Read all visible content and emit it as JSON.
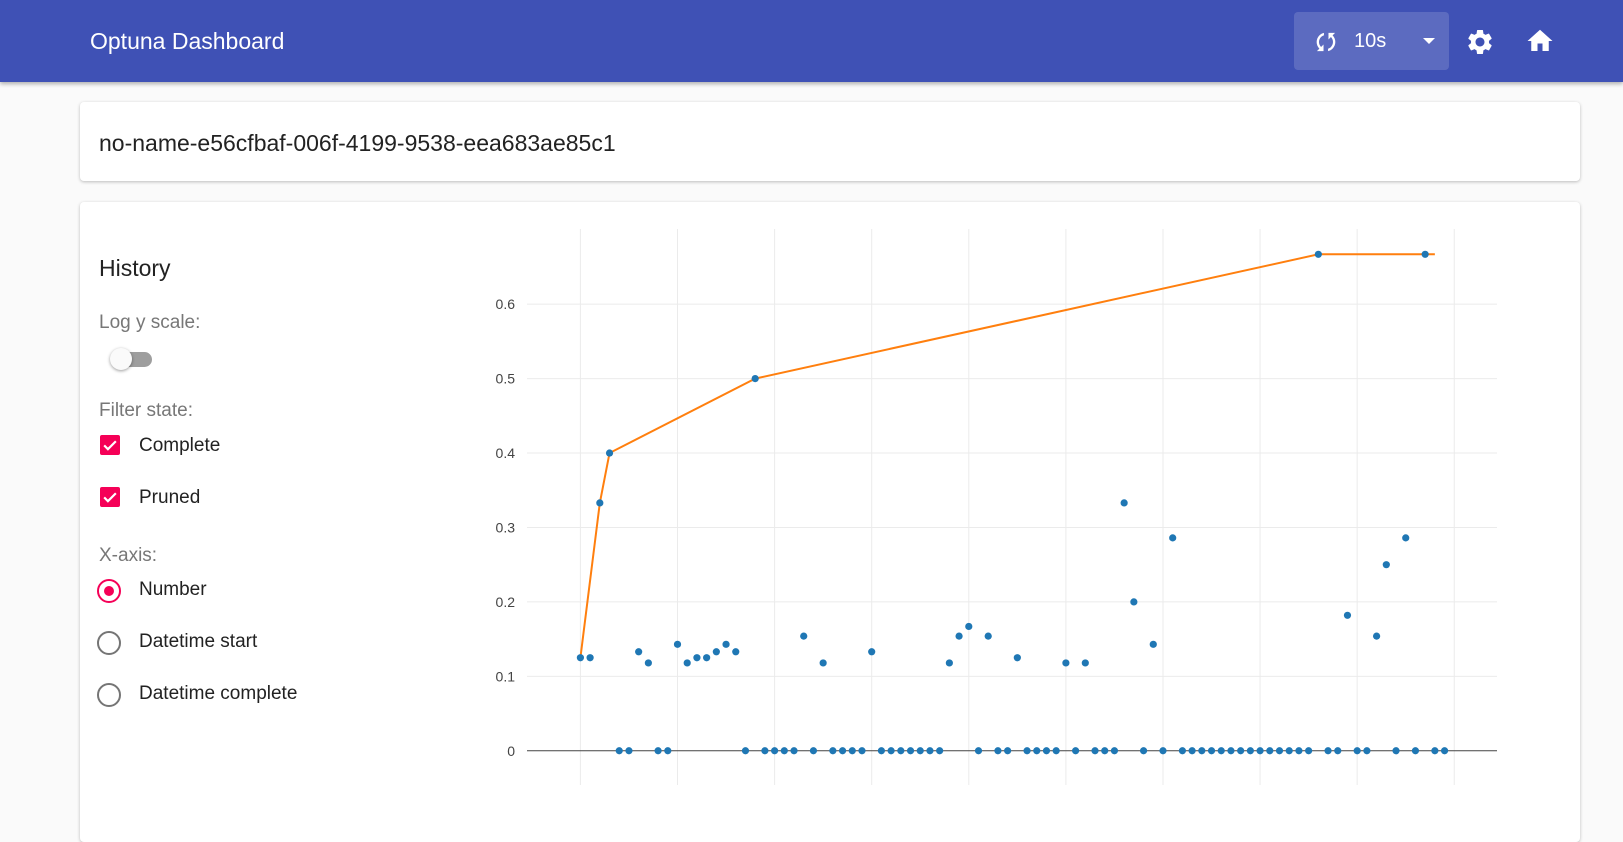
{
  "header": {
    "title": "Optuna Dashboard",
    "reload_interval": "10s"
  },
  "study": {
    "name": "no-name-e56cfbaf-006f-4199-9538-eea683ae85c1"
  },
  "history": {
    "title": "History",
    "log_y_scale_label": "Log y scale:",
    "log_y_scale": false,
    "filter_state_label": "Filter state:",
    "filters": [
      {
        "label": "Complete",
        "checked": true
      },
      {
        "label": "Pruned",
        "checked": true
      }
    ],
    "x_axis_label": "X-axis:",
    "x_axis_options": [
      {
        "label": "Number",
        "selected": true
      },
      {
        "label": "Datetime start",
        "selected": false
      },
      {
        "label": "Datetime complete",
        "selected": false
      }
    ]
  },
  "chart_data": {
    "type": "scatter",
    "x": [
      0,
      1,
      2,
      3,
      4,
      5,
      6,
      7,
      8,
      9,
      10,
      11,
      12,
      13,
      14,
      15,
      16,
      17,
      18,
      19,
      20,
      21,
      22,
      23,
      24,
      25,
      26,
      27,
      28,
      29,
      30,
      31,
      32,
      33,
      34,
      35,
      36,
      37,
      38,
      39,
      40,
      41,
      42,
      43,
      44,
      45,
      46,
      47,
      48,
      49,
      50,
      51,
      52,
      53,
      54,
      55,
      56,
      57,
      58,
      59,
      60,
      61,
      62,
      63,
      64,
      65,
      66,
      67,
      68,
      69,
      70,
      71,
      72,
      73,
      74,
      75,
      76,
      77,
      78,
      79,
      80,
      81,
      82,
      83,
      84,
      85,
      86,
      87,
      88,
      89
    ],
    "series": [
      {
        "color": "#1f77b4",
        "mode": "markers",
        "values": [
          0.125,
          0.125,
          0.333,
          0.4,
          0,
          0,
          0.133,
          0.118,
          0,
          0,
          0.143,
          0.118,
          0.125,
          0.125,
          0.133,
          0.143,
          0.133,
          0,
          0.5,
          0,
          0,
          0,
          0,
          0.154,
          0,
          0.118,
          0,
          0,
          0,
          0,
          0.133,
          0,
          0,
          0,
          0,
          0,
          0,
          0,
          0.118,
          0.154,
          0.167,
          0,
          0.154,
          0,
          0,
          0.125,
          0,
          0,
          0,
          0,
          0.118,
          0,
          0.118,
          0,
          0,
          0,
          0.333,
          0.2,
          0,
          0.143,
          0,
          0.286,
          0,
          0,
          0,
          0,
          0,
          0,
          0,
          0,
          0,
          0,
          0,
          0,
          0,
          0,
          0.667,
          0,
          0,
          0.182,
          0,
          0,
          0.154,
          0.25,
          0,
          0.286,
          0,
          0.667,
          0,
          0
        ]
      },
      {
        "color": "#ff7f0e",
        "mode": "lines",
        "x": [
          0,
          2,
          3,
          18,
          76,
          87,
          88
        ],
        "values": [
          0.125,
          0.333,
          0.4,
          0.5,
          0.667,
          0.667,
          0.667
        ]
      }
    ],
    "xlim": [
      -5.5,
      94.4
    ],
    "xticks": [
      0,
      10,
      20,
      30,
      40,
      50,
      60,
      70,
      80,
      90
    ],
    "ylim": [
      -0.046,
      0.701
    ],
    "yticks": [
      0,
      0.1,
      0.2,
      0.3,
      0.4,
      0.5,
      0.6
    ],
    "grid": true
  }
}
